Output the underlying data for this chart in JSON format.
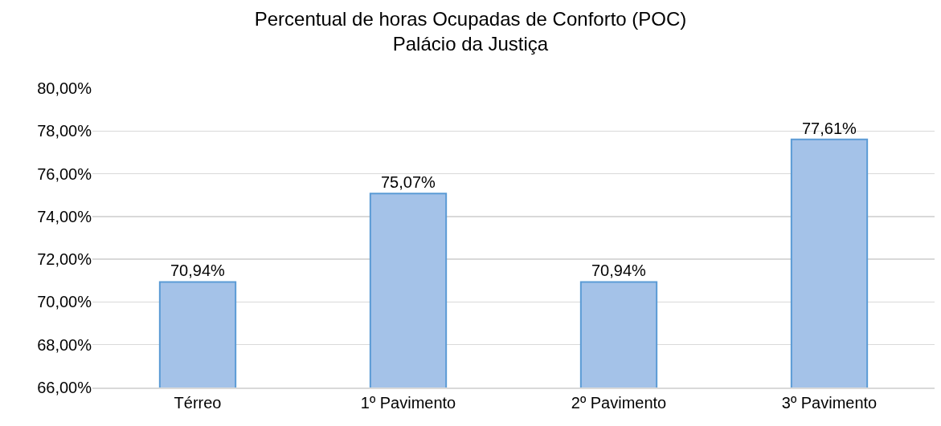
{
  "chart_data": {
    "type": "bar",
    "title": "Percentual de horas Ocupadas de Conforto (POC)\nPalácio da Justiça",
    "categories": [
      "Térreo",
      "1º Pavimento",
      "2º Pavimento",
      "3º Pavimento"
    ],
    "values": [
      70.94,
      75.07,
      70.94,
      77.61
    ],
    "value_labels": [
      "70,94%",
      "75,07%",
      "70,94%",
      "77,61%"
    ],
    "color": "#a4c2e8",
    "ylim": [
      66,
      80
    ],
    "yticks": [
      {
        "value": 66,
        "label": "66,00%"
      },
      {
        "value": 68,
        "label": "68,00%"
      },
      {
        "value": 70,
        "label": "70,00%"
      },
      {
        "value": 72,
        "label": "72,00%"
      },
      {
        "value": 74,
        "label": "74,00%"
      },
      {
        "value": 76,
        "label": "76,00%"
      },
      {
        "value": 78,
        "label": "78,00%"
      },
      {
        "value": 80,
        "label": "80,00%"
      }
    ],
    "grid": "y"
  }
}
